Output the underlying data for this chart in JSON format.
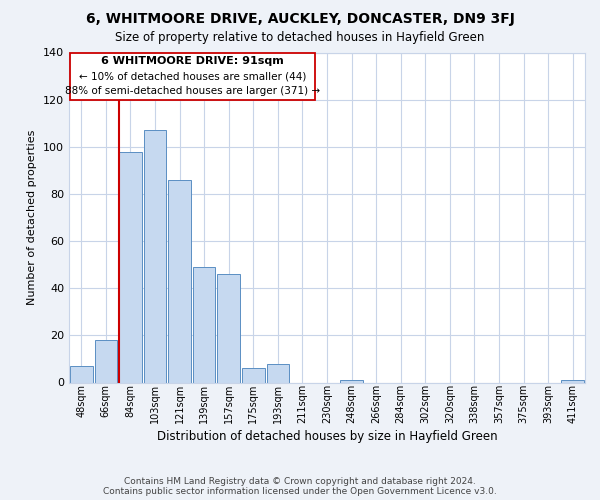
{
  "title": "6, WHITMOORE DRIVE, AUCKLEY, DONCASTER, DN9 3FJ",
  "subtitle": "Size of property relative to detached houses in Hayfield Green",
  "xlabel": "Distribution of detached houses by size in Hayfield Green",
  "ylabel": "Number of detached properties",
  "bar_labels": [
    "48sqm",
    "66sqm",
    "84sqm",
    "103sqm",
    "121sqm",
    "139sqm",
    "157sqm",
    "175sqm",
    "193sqm",
    "211sqm",
    "230sqm",
    "248sqm",
    "266sqm",
    "284sqm",
    "302sqm",
    "320sqm",
    "338sqm",
    "357sqm",
    "375sqm",
    "393sqm",
    "411sqm"
  ],
  "bar_values": [
    7,
    18,
    98,
    107,
    86,
    49,
    46,
    6,
    8,
    0,
    0,
    1,
    0,
    0,
    0,
    0,
    0,
    0,
    0,
    0,
    1
  ],
  "bar_color": "#c6d9f0",
  "bar_edge_color": "#5a8fc3",
  "ylim": [
    0,
    140
  ],
  "yticks": [
    0,
    20,
    40,
    60,
    80,
    100,
    120,
    140
  ],
  "vline_color": "#cc0000",
  "vline_index": 2,
  "annotation_title": "6 WHITMOORE DRIVE: 91sqm",
  "annotation_line1": "← 10% of detached houses are smaller (44)",
  "annotation_line2": "88% of semi-detached houses are larger (371) →",
  "annotation_box_color": "#ffffff",
  "annotation_box_edge": "#cc0000",
  "footer1": "Contains HM Land Registry data © Crown copyright and database right 2024.",
  "footer2": "Contains public sector information licensed under the Open Government Licence v3.0.",
  "background_color": "#eef2f8",
  "plot_bg_color": "#ffffff",
  "grid_color": "#c8d4e8"
}
